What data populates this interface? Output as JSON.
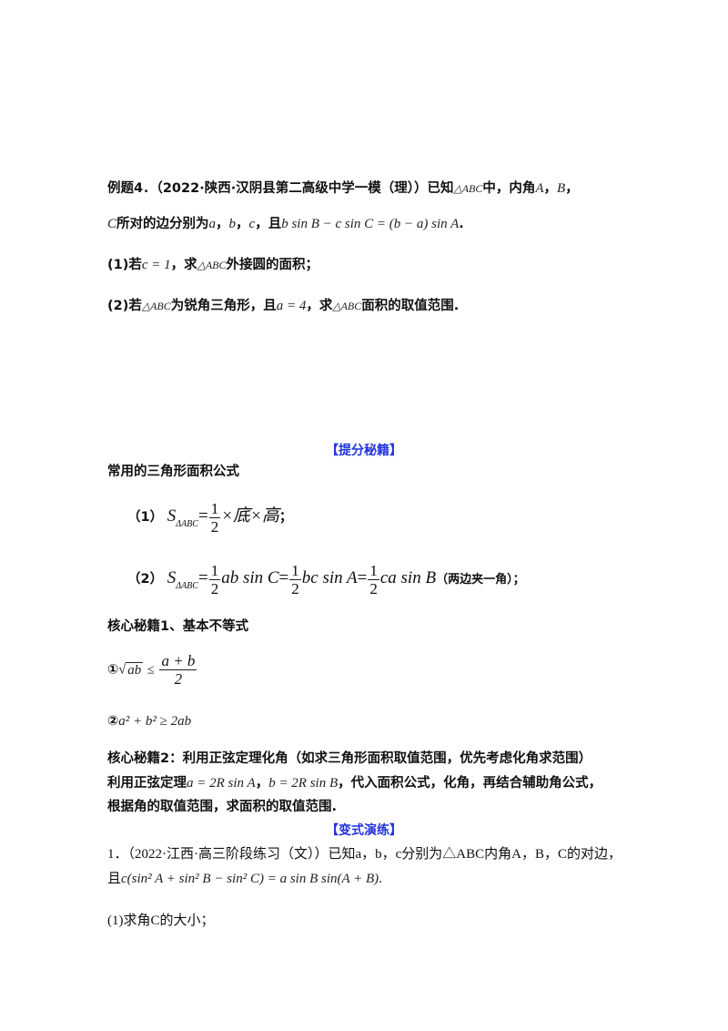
{
  "example": {
    "line1_prefix": "例题4．（2022·陕西·汉阴县第二高级中学一模（理））已知",
    "tri_abc": "△ABC",
    "line1_mid": "中，内角",
    "A": "A",
    "B": "B",
    "C": "C",
    "comma": "，",
    "line2_mid": "所对的边分别为",
    "a": "a",
    "b": "b",
    "c": "c",
    "and": "且",
    "condition": "b sin B − c sin C = (b − a) sin A",
    "period": ".",
    "q1_prefix": "(1)若",
    "q1_cond": "c = 1",
    "q1_mid": "，求",
    "q1_suffix": "外接圆的面积；",
    "q2_prefix": "(2)若",
    "q2_mid": "为锐角三角形，且",
    "q2_cond": "a = 4",
    "q2_mid2": "，求",
    "q2_suffix": "面积的取值范围."
  },
  "tips": {
    "title": "【提分秘籍】",
    "heading": "常用的三角形面积公式",
    "f1_label": "（1）",
    "S": "S",
    "S_sub": "ΔABC",
    "eq": "=",
    "one": "1",
    "two": "2",
    "f1_rest": "×底×高",
    "semi": "；",
    "f2_label": "（2）",
    "f2_t1": "ab sin C",
    "f2_t2": "bc sin A",
    "f2_t3": "ca sin B",
    "f2_note": "（两边夹一角）；",
    "core1": "核心秘籍1、基本不等式",
    "ineq1_label": "①",
    "ineq1_sqrt": "ab",
    "ineq1_le": "≤",
    "ineq1_num": "a + b",
    "ineq1_den": "2",
    "ineq2_label": "②",
    "ineq2": "a² + b² ≥ 2ab",
    "core2": "核心秘籍2：利用正弦定理化角（如求三角形面积取值范围，优先考虑化角求范围）",
    "core2_l2_prefix": "利用正弦定理",
    "core2_eq1": "a = 2R sin A",
    "core2_eq2": "b = 2R sin B",
    "core2_l2_suffix": "，代入面积公式，化角，再结合辅助角公式，",
    "core2_l3": "根据角的取值范围，求面积的取值范围."
  },
  "practice": {
    "title": "【变式演练】",
    "p1_line1": "1．（2022·江西·高三阶段练习（文））已知a，b，c分别为△ABC内角A，B，C的对边，",
    "p1_and": "且",
    "p1_eq": "c(sin² A + sin² B − sin² C) = a sin B sin(A + B)",
    "period": ".",
    "q1": "(1)求角C的大小；"
  }
}
